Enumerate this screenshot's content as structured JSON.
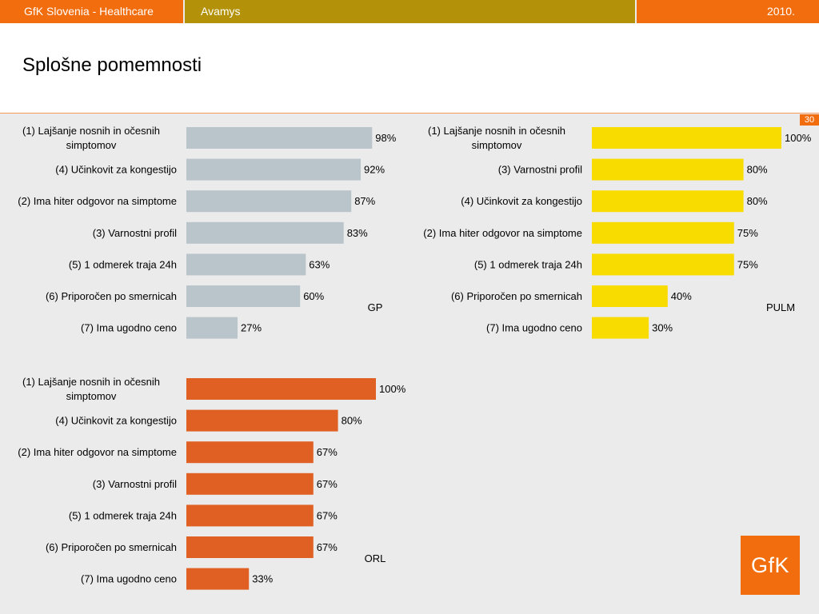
{
  "header": {
    "left_text": "GfK Slovenia - Healthcare",
    "middle_text": "Avamys",
    "right_text": "2010."
  },
  "page": {
    "title": "Splošne pomemnosti",
    "number": "30"
  },
  "logo": {
    "text": "GfK"
  },
  "colors": {
    "orange": "#f26d0d",
    "gold": "#b3920a",
    "gp_bar": "#bac4cb",
    "pulm_bar": "#f8dc00",
    "orl_bar": "#e06023"
  },
  "chart_data": [
    {
      "id": "gp",
      "type": "bar",
      "orientation": "horizontal",
      "panel_label": "GP",
      "categories": [
        "(1) Lajšanje nosnih in očesnih simptomov",
        "(4) Učinkovit za kongestijo",
        "(2) Ima hiter odgovor na simptome",
        "(3) Varnostni profil",
        "(5) 1 odmerek traja 24h",
        "(6) Priporočen po smernicah",
        "(7) Ima ugodno ceno"
      ],
      "values": [
        98,
        92,
        87,
        83,
        63,
        60,
        27
      ],
      "value_labels": [
        "98%",
        "92%",
        "87%",
        "83%",
        "63%",
        "60%",
        "27%"
      ],
      "xlim": [
        0,
        100
      ],
      "unit": "%",
      "color": "#bac4cb",
      "grid": false
    },
    {
      "id": "pulm",
      "type": "bar",
      "orientation": "horizontal",
      "panel_label": "PULM",
      "categories": [
        "(1) Lajšanje nosnih in očesnih simptomov",
        "(3) Varnostni profil",
        "(4) Učinkovit za kongestijo",
        "(2) Ima hiter odgovor na simptome",
        "(5) 1 odmerek traja 24h",
        "(6) Priporočen po smernicah",
        "(7) Ima ugodno ceno"
      ],
      "values": [
        100,
        80,
        80,
        75,
        75,
        40,
        30
      ],
      "value_labels": [
        "100%",
        "80%",
        "80%",
        "75%",
        "75%",
        "40%",
        "30%"
      ],
      "xlim": [
        0,
        100
      ],
      "unit": "%",
      "color": "#f8dc00",
      "grid": false
    },
    {
      "id": "orl",
      "type": "bar",
      "orientation": "horizontal",
      "panel_label": "ORL",
      "categories": [
        "(1) Lajšanje nosnih in očesnih simptomov",
        "(4) Učinkovit za kongestijo",
        "(2) Ima hiter odgovor na simptome",
        "(3) Varnostni profil",
        "(5) 1 odmerek traja 24h",
        "(6) Priporočen po smernicah",
        "(7) Ima ugodno ceno"
      ],
      "values": [
        100,
        80,
        67,
        67,
        67,
        67,
        33
      ],
      "value_labels": [
        "100%",
        "80%",
        "67%",
        "67%",
        "67%",
        "67%",
        "33%"
      ],
      "xlim": [
        0,
        100
      ],
      "unit": "%",
      "color": "#e06023",
      "grid": false
    }
  ]
}
